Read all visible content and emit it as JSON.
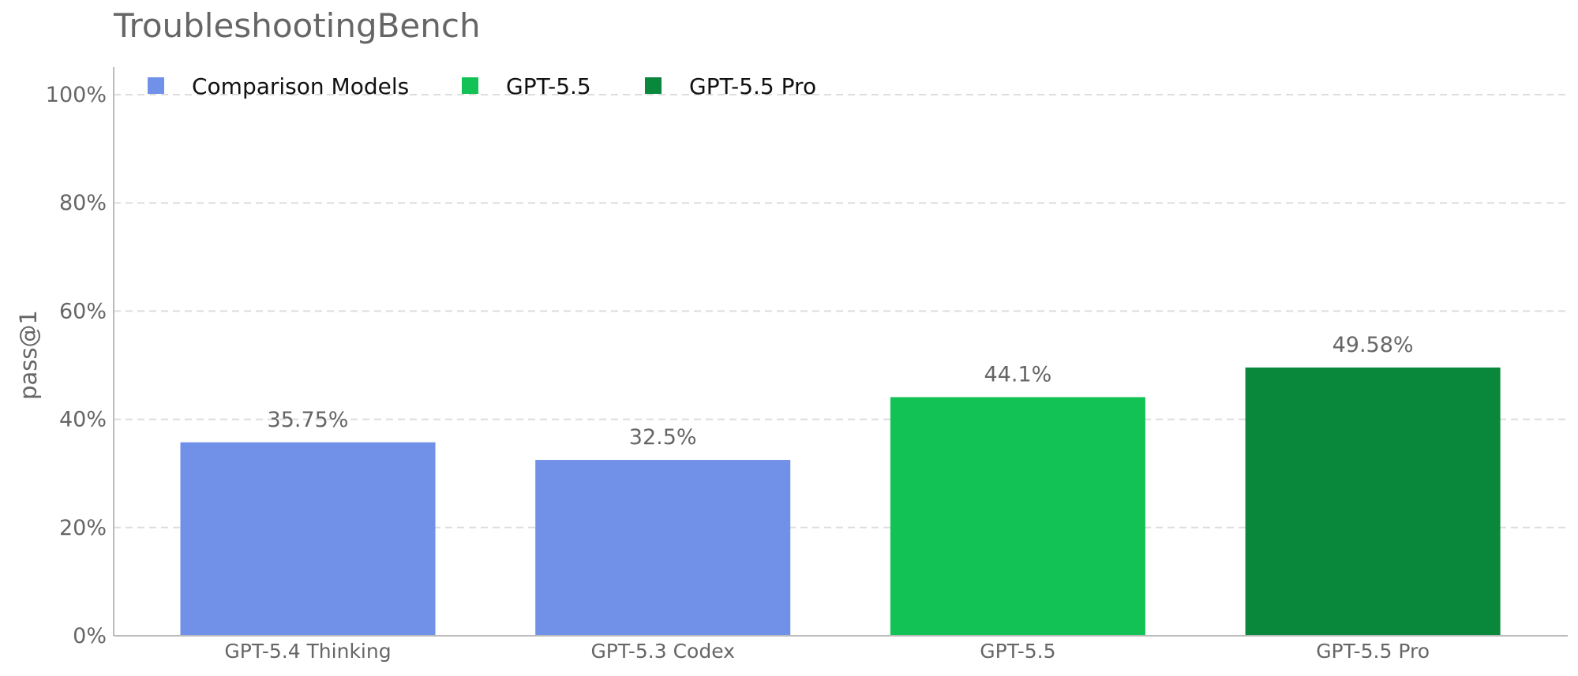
{
  "chart_data": {
    "type": "bar",
    "title": "TroubleshootingBench",
    "xlabel": "",
    "ylabel": "pass@1",
    "ylim": [
      0,
      100
    ],
    "yticks": [
      0,
      20,
      40,
      60,
      80,
      100
    ],
    "ytick_labels": [
      "0%",
      "20%",
      "40%",
      "60%",
      "80%",
      "100%"
    ],
    "grid": "horizontal dashed",
    "legend_position": "top-left",
    "categories": [
      "GPT-5.4 Thinking",
      "GPT-5.3 Codex",
      "GPT-5.5",
      "GPT-5.5 Pro"
    ],
    "values": [
      35.75,
      32.5,
      44.1,
      49.58
    ],
    "data_labels": [
      "35.75%",
      "32.5%",
      "44.1%",
      "49.58%"
    ],
    "bar_groups": [
      "Comparison Models",
      "Comparison Models",
      "GPT-5.5",
      "GPT-5.5 Pro"
    ],
    "legend": [
      {
        "name": "Comparison Models",
        "color": "#7190e8"
      },
      {
        "name": "GPT-5.5",
        "color": "#13c254"
      },
      {
        "name": "GPT-5.5 Pro",
        "color": "#09883c"
      }
    ]
  }
}
